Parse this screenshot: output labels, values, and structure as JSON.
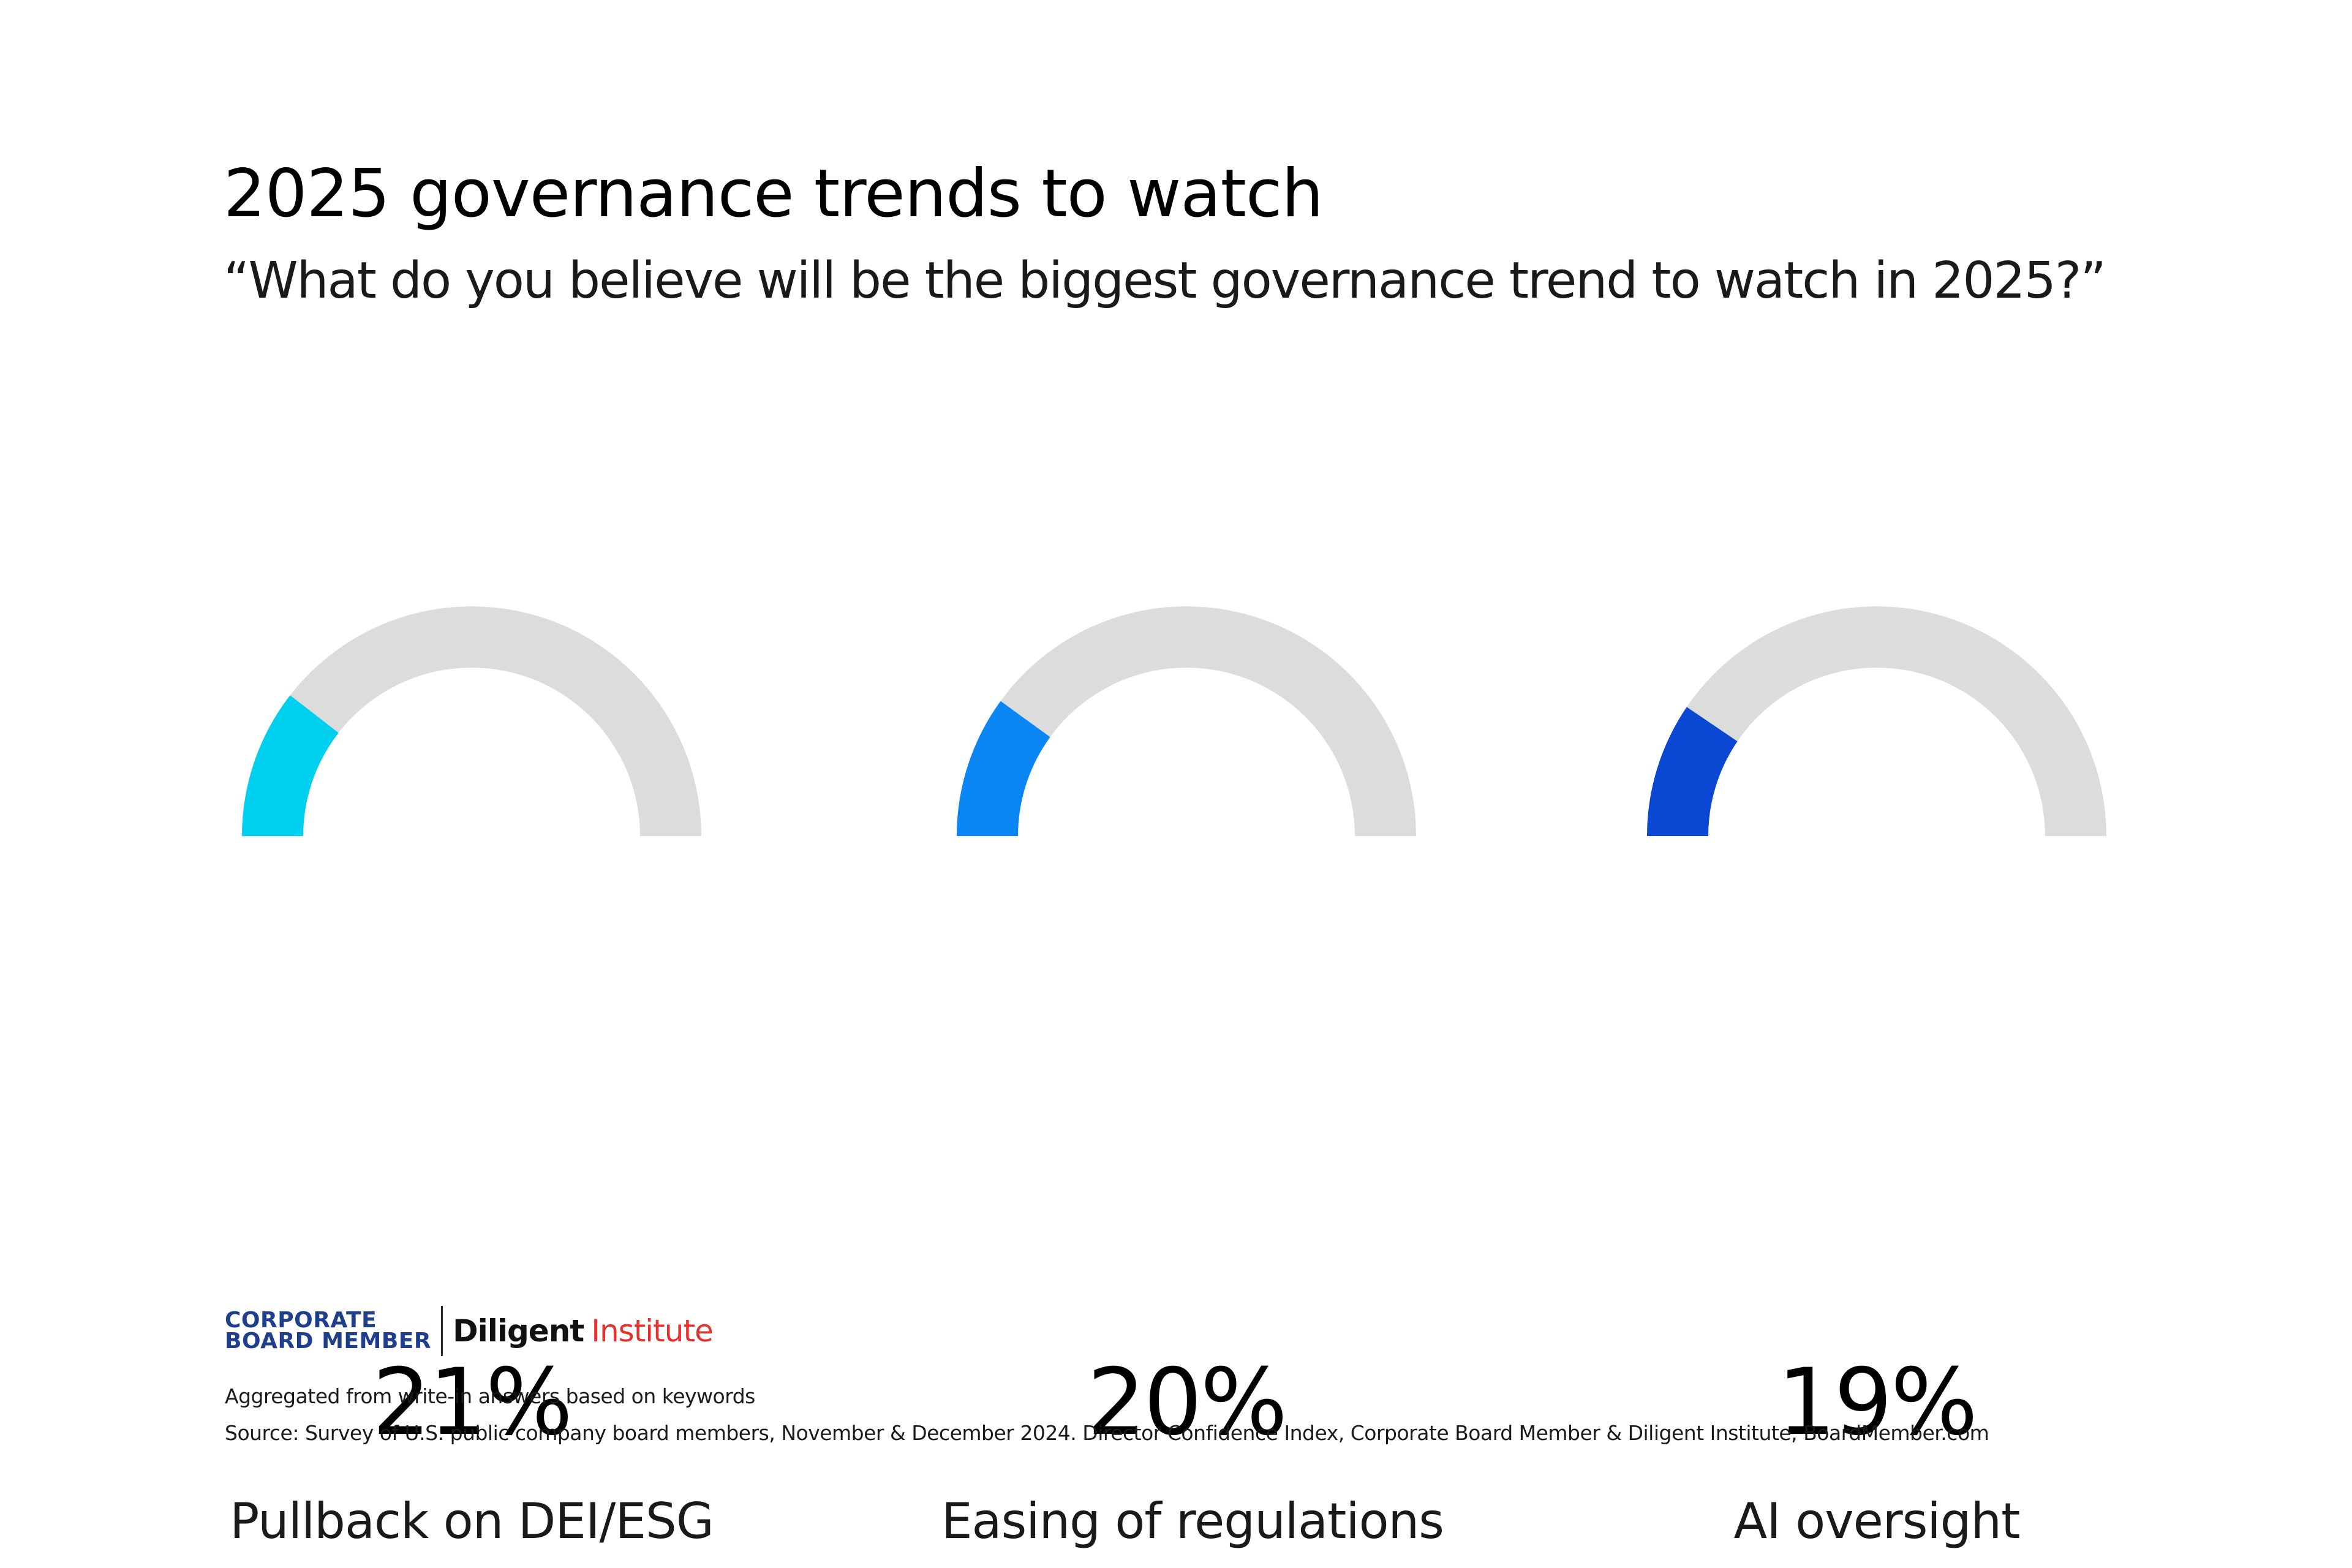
{
  "chart_data": {
    "type": "gauge",
    "title": "2025 governance trends to watch",
    "subtitle": "“What do you believe will be the biggest governance trend to watch in 2025?”",
    "range": [
      0,
      100
    ],
    "items": [
      {
        "label": "Pullback on DEI/ESG",
        "value": 21,
        "value_text": "21%",
        "color": "#00d0f0"
      },
      {
        "label": "Easing of regulations",
        "value": 20,
        "value_text": "20%",
        "color": "#0a86f5"
      },
      {
        "label": "AI oversight",
        "value": 19,
        "value_text": "19%",
        "color": "#0a47d3"
      }
    ],
    "track_color": "#dcdcdc"
  },
  "logo": {
    "cbm_line1": "CORPORATE",
    "cbm_line2": "BOARD MEMBER",
    "diligent": "Diligent",
    "institute": "Institute"
  },
  "footnotes": {
    "note": "Aggregated from write-in answers based on keywords",
    "source": "Source: Survey of U.S. public company board members, November & December 2024. Director Confidence Index, Corporate Board Member & Diligent Institute, BoardMember.com"
  }
}
